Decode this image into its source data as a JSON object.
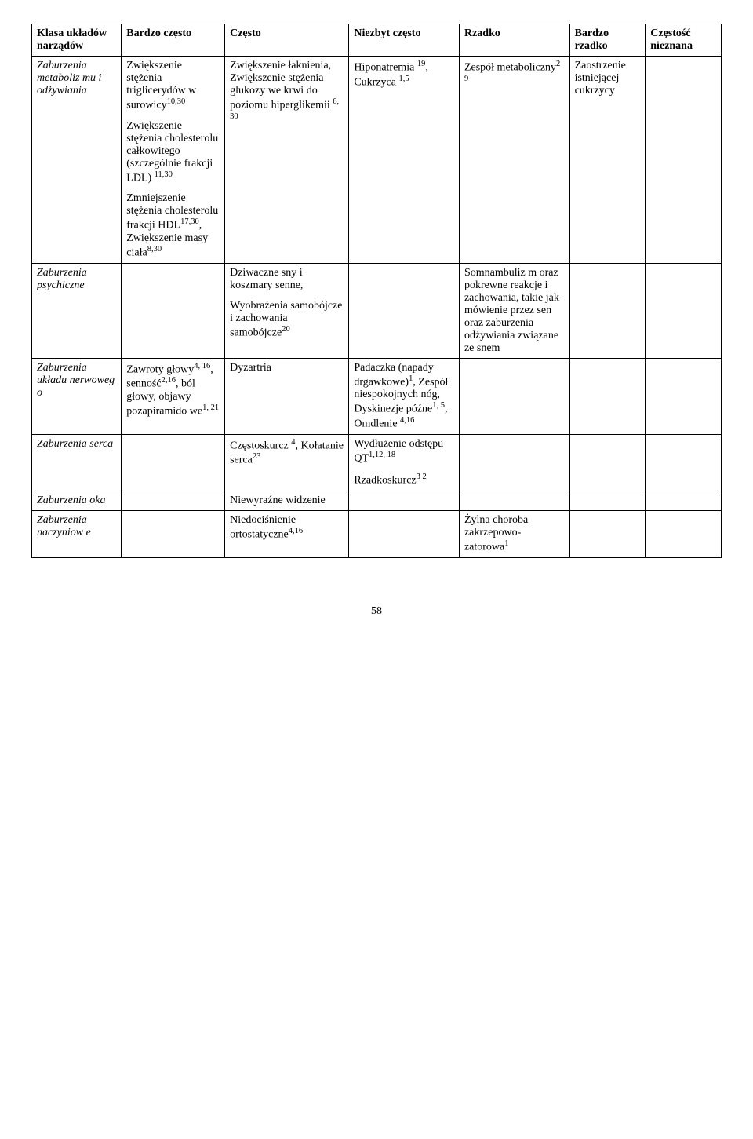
{
  "columns": [
    {
      "label": "Klasa układów narządów",
      "width": "13%"
    },
    {
      "label": "Bardzo często",
      "width": "15%"
    },
    {
      "label": "Często",
      "width": "18%"
    },
    {
      "label": "Niezbyt często",
      "width": "16%"
    },
    {
      "label": "Rzadko",
      "width": "16%"
    },
    {
      "label": "Bardzo rzadko",
      "width": "11%"
    },
    {
      "label": "Częstość nieznana",
      "width": "11%"
    }
  ],
  "rows": [
    {
      "label_html": "Zaburzenia metaboliz mu i odżywiania",
      "cells": [
        [
          "Zwiększenie stężenia triglicerydów w surowicy<sup>10,30</sup>",
          "Zwiększenie stężenia cholesterolu całkowitego (szczególnie frakcji LDL) <sup>11,30</sup>",
          "Zmniejszenie stężenia cholesterolu frakcji HDL<sup>17,30</sup>, Zwiększenie masy ciała<sup>8,30</sup>"
        ],
        [
          "Zwiększenie łaknienia, Zwiększenie stężenia glukozy we krwi do poziomu hiperglikemii <sup>6, 30</sup>"
        ],
        [
          "Hiponatremia <sup>19</sup>, Cukrzyca <sup>1,5</sup>"
        ],
        [
          "Zespół metaboliczny<sup>2 9</sup>"
        ],
        [
          "Zaostrzenie istniejącej cukrzycy"
        ],
        []
      ]
    },
    {
      "label_html": "Zaburzenia psychiczne",
      "cells": [
        [],
        [
          "Dziwaczne sny i koszmary senne,",
          "Wyobrażenia samobójcze i zachowania samobójcze<sup>20</sup>"
        ],
        [],
        [
          "Somnambuliz m oraz pokrewne reakcje i zachowania, takie jak mówienie przez sen oraz zaburzenia odżywiania związane ze snem"
        ],
        [],
        []
      ]
    },
    {
      "label_html": "Zaburzenia układu nerwoweg o",
      "cells": [
        [
          "Zawroty głowy<sup>4, 16</sup>, senność<sup>2,16</sup>, ból głowy, objawy pozapiramido we<sup>1, 21</sup>"
        ],
        [
          "Dyzartria"
        ],
        [
          "Padaczka (napady drgawkowe)<sup>1</sup>, Zespół niespokojnych nóg, Dyskinezje późne<sup>1, 5</sup>, Omdlenie <sup>4,16</sup>"
        ],
        [],
        [],
        []
      ]
    },
    {
      "label_html": "Zaburzenia serca",
      "cells": [
        [],
        [
          "Częstoskurcz <sup>4</sup>, Kołatanie serca<sup>23</sup>"
        ],
        [
          "Wydłużenie odstępu QT<sup>1,12, 18</sup>",
          "Rzadkoskurcz<sup>3 2</sup>"
        ],
        [],
        [],
        []
      ]
    },
    {
      "label_html": "Zaburzenia oka",
      "cells": [
        [],
        [
          "Niewyraźne widzenie"
        ],
        [],
        [],
        [],
        []
      ]
    },
    {
      "label_html": "Zaburzenia naczyniow e",
      "cells": [
        [],
        [
          "Niedociśnienie ortostatyczne<sup>4,16</sup>"
        ],
        [],
        [
          "Żylna choroba zakrzepowo-zatorowa<sup>1</sup>"
        ],
        [],
        []
      ]
    }
  ],
  "pageNumber": "58",
  "style": {
    "font_family": "Times New Roman",
    "font_size_pt": 11,
    "border_color": "#000000",
    "background_color": "#ffffff",
    "text_color": "#000000"
  }
}
